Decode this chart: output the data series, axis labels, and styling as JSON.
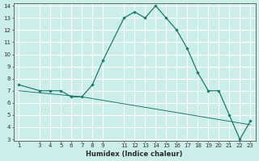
{
  "title": "",
  "xlabel": "Humidex (Indice chaleur)",
  "ylabel": "",
  "bg_color": "#cceee8",
  "line_color": "#1a7a6e",
  "grid_color": "#ffffff",
  "line1_x": [
    1,
    3,
    4,
    5,
    6,
    7,
    8,
    9,
    11,
    12,
    13,
    14,
    15,
    16,
    17,
    18,
    19,
    20,
    21,
    22,
    23
  ],
  "line1_y": [
    7.5,
    7.0,
    7.0,
    7.0,
    6.5,
    6.5,
    7.5,
    9.5,
    13.0,
    13.5,
    13.0,
    14.0,
    13.0,
    12.0,
    10.5,
    8.5,
    7.0,
    7.0,
    5.0,
    3.0,
    4.5
  ],
  "line2_x": [
    1,
    7,
    23
  ],
  "line2_y": [
    7.0,
    6.5,
    4.2
  ],
  "xlim": [
    0.5,
    23.5
  ],
  "ylim": [
    3,
    14
  ],
  "xticks": [
    1,
    3,
    4,
    5,
    6,
    7,
    8,
    9,
    11,
    12,
    13,
    14,
    15,
    16,
    17,
    18,
    19,
    20,
    21,
    22,
    23
  ],
  "yticks": [
    3,
    4,
    5,
    6,
    7,
    8,
    9,
    10,
    11,
    12,
    13,
    14
  ],
  "title_fontsize": 6,
  "tick_fontsize": 5,
  "label_fontsize": 6,
  "label_fontweight": "bold"
}
